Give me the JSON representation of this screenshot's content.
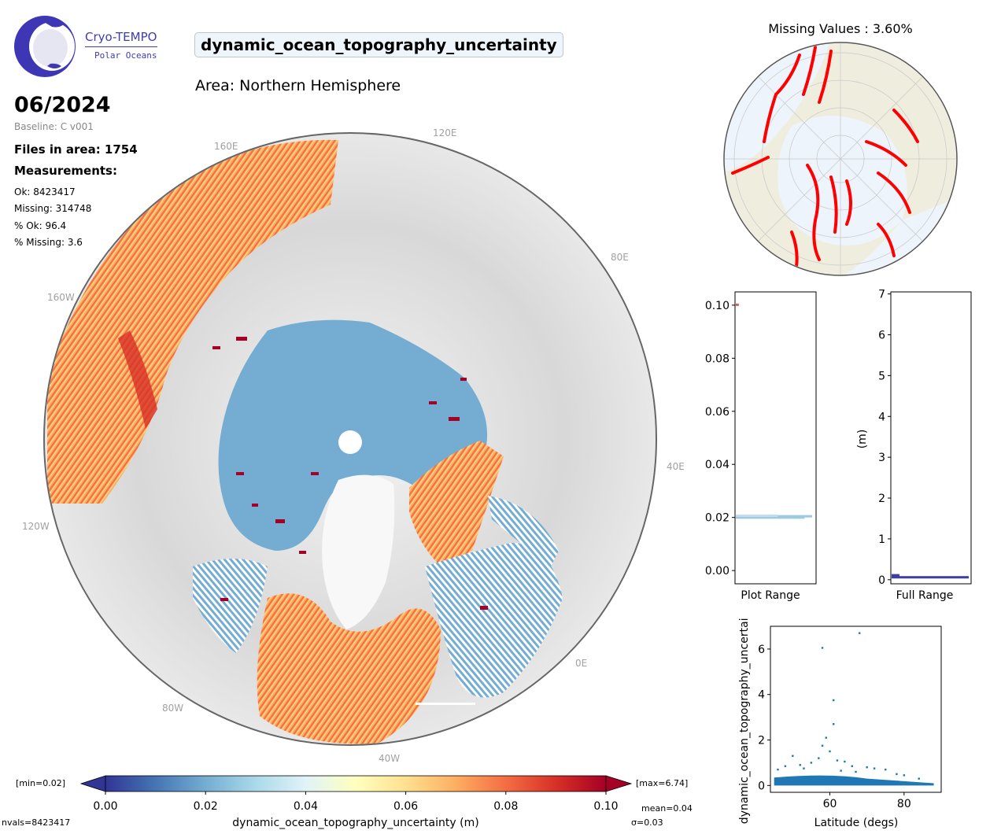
{
  "logo": {
    "line1": "Cryo-TEMPO",
    "line2": "Polar Oceans"
  },
  "title": "dynamic_ocean_topography_uncertainty",
  "area": "Area: Northern Hemisphere",
  "date": "06/2024",
  "baseline": "Baseline: C v001",
  "files": "Files in area: 1754",
  "measurements_label": "Measurements:",
  "stats": [
    "Ok: 8423417",
    "Missing: 314748",
    "% Ok: 96.4",
    "% Missing: 3.6"
  ],
  "map": {
    "lon_labels": [
      "120E",
      "160E",
      "80E",
      "160W",
      "40E",
      "120W",
      "0E",
      "80W",
      "40W"
    ],
    "colors": {
      "land": "#d9d9d9",
      "low_uncertainty": "#74add1",
      "high_uncertainty": "#a50026",
      "mid_uncertainty": "#f46d43",
      "pale": "#fee090"
    }
  },
  "missing_map": {
    "title": "Missing Values : 3.60%",
    "colors": {
      "ocean": "#edf4fc",
      "land": "#efedde",
      "missing": "#ff0000"
    }
  },
  "chart_data": [
    {
      "type": "bar",
      "orientation": "horizontal",
      "xlabel": "Plot Range",
      "ylim": [
        -0.005,
        0.105
      ],
      "yticks": [
        "0.00",
        "0.02",
        "0.04",
        "0.06",
        "0.08",
        "0.10"
      ],
      "bins": [
        {
          "y": 0.0198,
          "count_fraction": 0.9
        },
        {
          "y": 0.0203,
          "count_fraction": 1.0
        },
        {
          "y": 0.0205,
          "count_fraction": 0.55
        },
        {
          "y": 0.1,
          "count_fraction": 0.04
        }
      ],
      "colors": [
        "#9ecae1",
        "#9ecae1",
        "#c6dbef",
        "#d6604d"
      ]
    },
    {
      "type": "bar",
      "orientation": "horizontal",
      "xlabel": "Full Range",
      "ylabel": "(m)",
      "ylim": [
        -0.1,
        7.05
      ],
      "yticks": [
        "0",
        "1",
        "2",
        "3",
        "4",
        "5",
        "6",
        "7"
      ],
      "bins": [
        {
          "y": 0.05,
          "count_fraction": 1.0
        },
        {
          "y": 0.1,
          "count_fraction": 0.1
        }
      ],
      "color": "#3f3f9f"
    },
    {
      "type": "scatter",
      "xlabel": "Latitude (degs)",
      "ylabel": "dynamic_ocean_topography_uncertainty",
      "xlim": [
        44,
        90
      ],
      "ylim": [
        -0.3,
        7.0
      ],
      "xticks": [
        "60",
        "80"
      ],
      "yticks": [
        "0",
        "2",
        "4",
        "6"
      ],
      "color": "#1f77b4",
      "points": [
        [
          58,
          6.05
        ],
        [
          68,
          6.7
        ],
        [
          61,
          3.75
        ],
        [
          61,
          2.7
        ],
        [
          59,
          2.1
        ],
        [
          58,
          1.75
        ],
        [
          60,
          1.5
        ],
        [
          50,
          1.3
        ],
        [
          57,
          1.2
        ],
        [
          62,
          1.1
        ],
        [
          64,
          1.05
        ],
        [
          55,
          1.0
        ],
        [
          52,
          0.9
        ],
        [
          66,
          0.85
        ],
        [
          48,
          0.85
        ],
        [
          70,
          0.8
        ],
        [
          72,
          0.75
        ],
        [
          75,
          0.7
        ],
        [
          53,
          0.75
        ],
        [
          46,
          0.7
        ],
        [
          63,
          0.65
        ],
        [
          67,
          0.6
        ],
        [
          78,
          0.5
        ],
        [
          80,
          0.45
        ],
        [
          84,
          0.3
        ]
      ]
    },
    {
      "type": "colorbar",
      "label": "dynamic_ocean_topography_uncertainty (m)",
      "range": [
        0.0,
        0.1
      ],
      "ticks": [
        "0.00",
        "0.02",
        "0.04",
        "0.06",
        "0.08",
        "0.10"
      ],
      "min_label": "[min=0.02]",
      "max_label": "[max=6.74]",
      "mean": "mean=0.04",
      "sigma": "σ=0.03",
      "nvals": "nvals=8423417",
      "colors": [
        "#313695",
        "#4575b4",
        "#74add1",
        "#abd9e9",
        "#e0f3f8",
        "#ffffbf",
        "#fee090",
        "#fdae61",
        "#f46d43",
        "#d73027",
        "#a50026"
      ]
    }
  ]
}
